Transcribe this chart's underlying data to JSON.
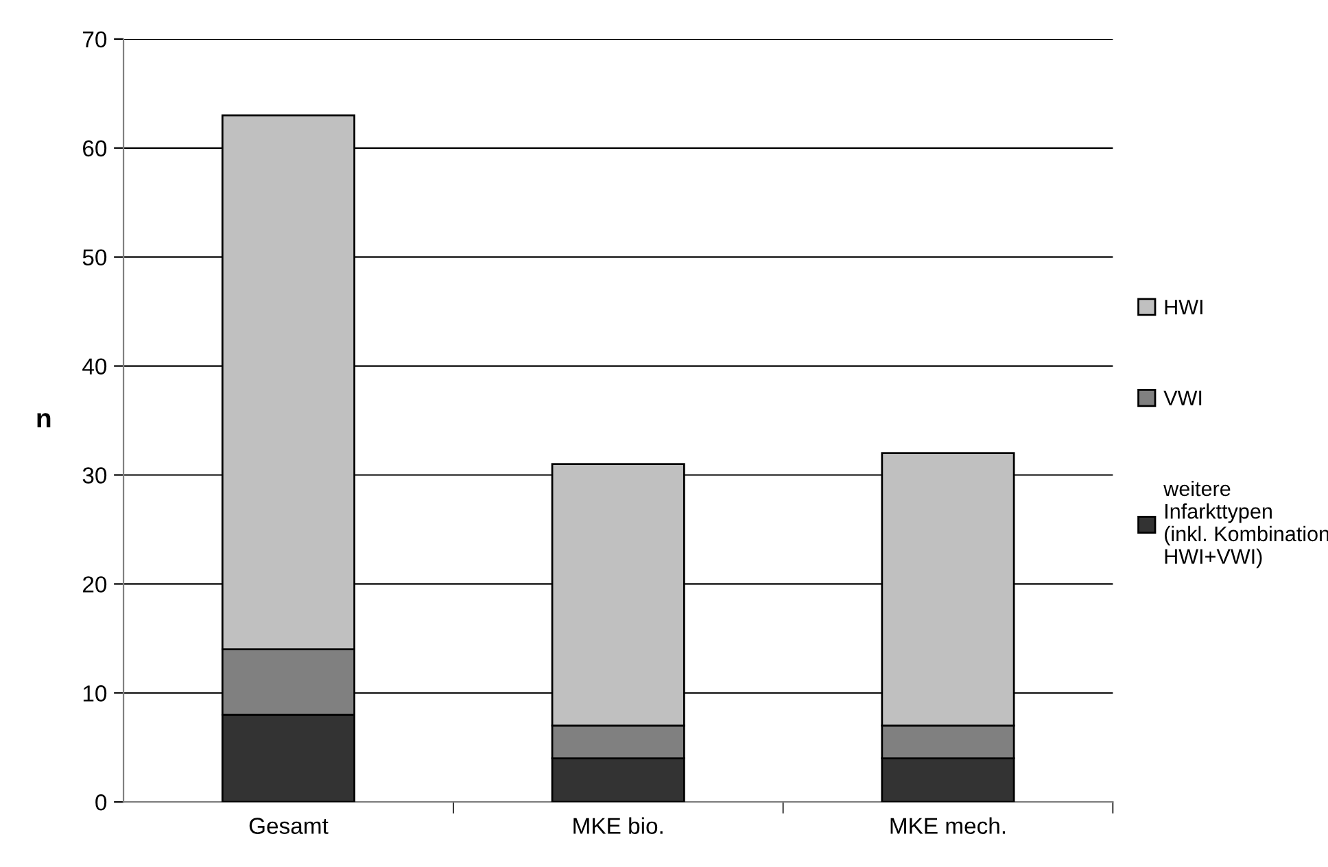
{
  "chart_data": {
    "type": "bar",
    "stacked": true,
    "ylabel": "n",
    "categories": [
      "Gesamt",
      "MKE bio.",
      "MKE mech."
    ],
    "series": [
      {
        "name": "weitere\nInfarkttypen\n(inkl. Kombination\nHWI+VWI)",
        "color": "#333333",
        "values": [
          8,
          4,
          4
        ]
      },
      {
        "name": "VWI",
        "color": "#808080",
        "values": [
          6,
          3,
          3
        ]
      },
      {
        "name": "HWI",
        "color": "#c0c0c0",
        "values": [
          49,
          24,
          25
        ]
      }
    ],
    "ylim": [
      0,
      70
    ],
    "yticks": [
      0,
      10,
      20,
      30,
      40,
      50,
      60,
      70
    ],
    "grid": "y",
    "legend": "right"
  }
}
